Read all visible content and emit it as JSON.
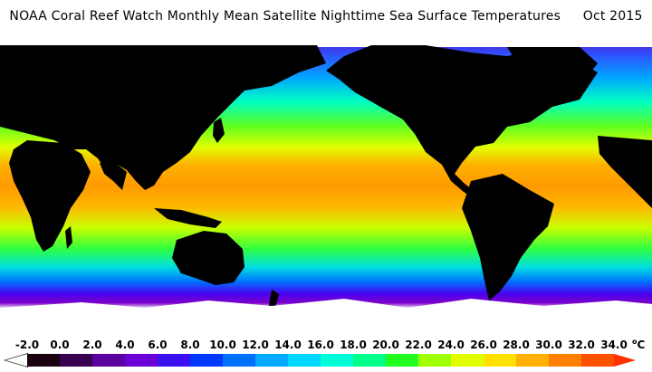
{
  "title": {
    "text": "NOAA Coral Reef Watch Monthly Mean Satellite Nighttime Sea Surface Temperatures",
    "date": "Oct 2015"
  },
  "colorbar": {
    "unit": "C",
    "ticks": [
      "-2.0",
      "0.0",
      "2.0",
      "4.0",
      "6.0",
      "8.0",
      "10.0",
      "12.0",
      "14.0",
      "16.0",
      "18.0",
      "20.0",
      "22.0",
      "24.0",
      "26.0",
      "28.0",
      "30.0",
      "32.0",
      "34.0"
    ],
    "colors": [
      "#1a0010",
      "#3a0050",
      "#5c00a0",
      "#6a00d6",
      "#3a10f0",
      "#0038ff",
      "#0070ff",
      "#00a8ff",
      "#00d8ff",
      "#00ffd8",
      "#00ff88",
      "#20ff20",
      "#a0ff00",
      "#e0ff00",
      "#ffe000",
      "#ffb000",
      "#ff8000",
      "#ff5000"
    ],
    "under_color": "#ffffff",
    "over_color": "#ff3300"
  },
  "map": {
    "land_color": "#000000",
    "ice_color": "#ffffff",
    "ocean_bands": [
      "#ffffff",
      "#7a00b8",
      "#5a00e8",
      "#0050ff",
      "#00b8ff",
      "#00ffb0",
      "#40ff30",
      "#c8ff00",
      "#ffd000",
      "#ff9a00"
    ]
  }
}
